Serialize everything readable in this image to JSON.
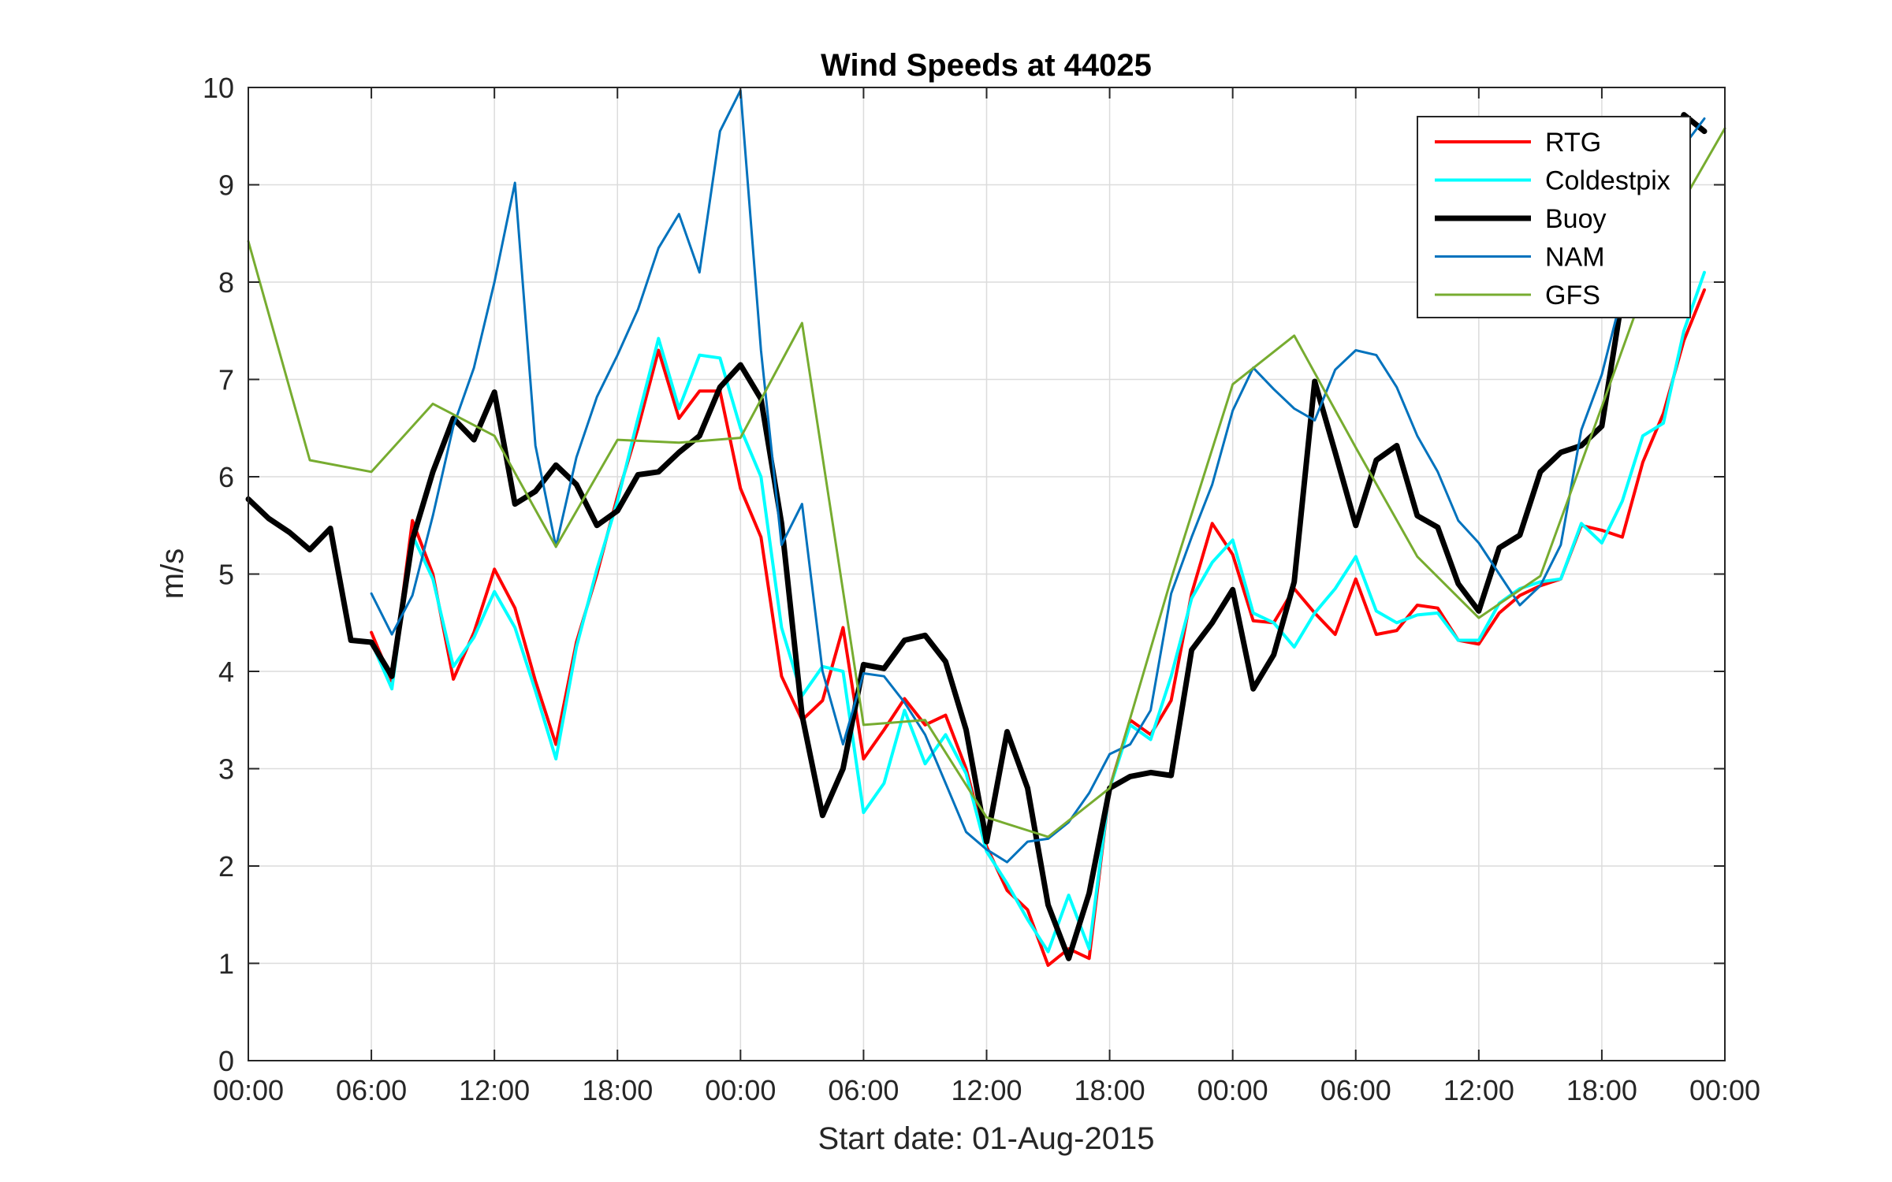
{
  "chart_data": {
    "type": "line",
    "title": "Wind Speeds at 44025",
    "xlabel": "Start date: 01-Aug-2015",
    "ylabel": "m/s",
    "xlim": [
      0,
      72
    ],
    "ylim": [
      0,
      10
    ],
    "x_ticks": [
      0,
      6,
      12,
      18,
      24,
      30,
      36,
      42,
      48,
      54,
      60,
      66,
      72
    ],
    "x_tick_labels": [
      "00:00",
      "06:00",
      "12:00",
      "18:00",
      "00:00",
      "06:00",
      "12:00",
      "18:00",
      "00:00",
      "06:00",
      "12:00",
      "18:00",
      "00:00"
    ],
    "y_ticks": [
      0,
      1,
      2,
      3,
      4,
      5,
      6,
      7,
      8,
      9,
      10
    ],
    "y_tick_labels": [
      "0",
      "1",
      "2",
      "3",
      "4",
      "5",
      "6",
      "7",
      "8",
      "9",
      "10"
    ],
    "grid": true,
    "legend_position": "top-right",
    "series": [
      {
        "name": "RTG",
        "color": "#ff0000",
        "width": 4,
        "x": [
          6,
          7,
          8,
          9,
          10,
          11,
          12,
          13,
          14,
          15,
          16,
          17,
          18,
          19,
          20,
          21,
          22,
          23,
          24,
          25,
          26,
          27,
          28,
          29,
          30,
          31,
          32,
          33,
          34,
          35,
          36,
          37,
          38,
          39,
          40,
          41,
          42,
          43,
          44,
          45,
          46,
          47,
          48,
          49,
          50,
          51,
          52,
          53,
          54,
          55,
          56,
          57,
          58,
          59,
          60,
          61,
          62,
          63,
          64,
          65,
          66,
          67,
          68,
          69,
          70,
          71
        ],
        "values": [
          4.4,
          3.9,
          5.55,
          5.0,
          3.92,
          4.4,
          5.05,
          4.65,
          3.9,
          3.25,
          4.3,
          5.0,
          5.8,
          6.5,
          7.3,
          6.6,
          6.88,
          6.88,
          5.88,
          5.38,
          3.95,
          3.5,
          3.7,
          4.45,
          3.1,
          3.4,
          3.72,
          3.45,
          3.55,
          3.0,
          2.2,
          1.75,
          1.55,
          0.98,
          1.15,
          1.05,
          2.8,
          3.5,
          3.35,
          3.7,
          4.8,
          5.52,
          5.2,
          4.52,
          4.5,
          4.85,
          4.6,
          4.38,
          4.95,
          4.38,
          4.42,
          4.68,
          4.65,
          4.32,
          4.28,
          4.6,
          4.78,
          4.88,
          4.95,
          5.5,
          5.45,
          5.38,
          6.15,
          6.65,
          7.4,
          7.92
        ]
      },
      {
        "name": "Coldestpix",
        "color": "#00ffff",
        "width": 4,
        "x": [
          6,
          7,
          8,
          9,
          10,
          11,
          12,
          13,
          14,
          15,
          16,
          17,
          18,
          19,
          20,
          21,
          22,
          23,
          24,
          25,
          26,
          27,
          28,
          29,
          30,
          31,
          32,
          33,
          34,
          35,
          36,
          37,
          38,
          39,
          40,
          41,
          42,
          43,
          44,
          45,
          46,
          47,
          48,
          49,
          50,
          51,
          52,
          53,
          54,
          55,
          56,
          57,
          58,
          59,
          60,
          61,
          62,
          63,
          64,
          65,
          66,
          67,
          68,
          69,
          70,
          71
        ],
        "values": [
          4.3,
          3.82,
          5.4,
          4.95,
          4.05,
          4.35,
          4.82,
          4.45,
          3.8,
          3.1,
          4.25,
          5.05,
          5.75,
          6.6,
          7.42,
          6.7,
          7.25,
          7.22,
          6.5,
          6.0,
          4.45,
          3.75,
          4.05,
          4.0,
          2.55,
          2.85,
          3.6,
          3.05,
          3.35,
          2.95,
          2.15,
          1.82,
          1.45,
          1.12,
          1.7,
          1.15,
          2.8,
          3.45,
          3.3,
          3.95,
          4.75,
          5.12,
          5.35,
          4.6,
          4.5,
          4.25,
          4.6,
          4.85,
          5.18,
          4.62,
          4.5,
          4.58,
          4.6,
          4.32,
          4.32,
          4.7,
          4.85,
          4.92,
          4.95,
          5.52,
          5.32,
          5.75,
          6.42,
          6.55,
          7.5,
          8.1
        ]
      },
      {
        "name": "Buoy",
        "color": "#000000",
        "width": 7,
        "x": [
          0,
          1,
          2,
          3,
          4,
          5,
          6,
          7,
          8,
          9,
          10,
          11,
          12,
          13,
          14,
          15,
          16,
          17,
          18,
          19,
          20,
          21,
          22,
          23,
          24,
          25,
          26,
          27,
          28,
          29,
          30,
          31,
          32,
          33,
          34,
          35,
          36,
          37,
          38,
          39,
          40,
          41,
          42,
          43,
          44,
          45,
          46,
          47,
          48,
          49,
          50,
          51,
          52,
          53,
          54,
          55,
          56,
          57,
          58,
          59,
          60,
          61,
          62,
          63,
          64,
          65,
          66,
          67,
          68,
          69,
          70,
          71
        ],
        "values": [
          5.77,
          5.57,
          5.43,
          5.25,
          5.47,
          4.32,
          4.3,
          3.95,
          5.35,
          6.05,
          6.6,
          6.38,
          6.87,
          5.72,
          5.85,
          6.12,
          5.92,
          5.5,
          5.65,
          6.02,
          6.05,
          6.25,
          6.42,
          6.92,
          7.15,
          6.8,
          5.52,
          3.55,
          2.52,
          3.0,
          4.07,
          4.03,
          4.32,
          4.37,
          4.1,
          3.4,
          2.25,
          3.38,
          2.8,
          1.6,
          1.05,
          1.72,
          2.8,
          2.92,
          2.96,
          2.93,
          4.22,
          4.5,
          4.84,
          3.82,
          4.17,
          4.92,
          6.98,
          6.25,
          5.5,
          6.17,
          6.32,
          5.6,
          5.48,
          4.9,
          4.62,
          5.27,
          5.4,
          6.05,
          6.25,
          6.32,
          6.52,
          7.85,
          8.5,
          9.05,
          9.72,
          9.55
        ]
      },
      {
        "name": "NAM",
        "color": "#0072bd",
        "width": 3,
        "x": [
          6,
          7,
          8,
          9,
          10,
          11,
          12,
          13,
          14,
          15,
          16,
          17,
          18,
          19,
          20,
          21,
          22,
          23,
          24,
          25,
          26,
          27,
          28,
          29,
          30,
          31,
          32,
          33,
          34,
          35,
          36,
          37,
          38,
          39,
          40,
          41,
          42,
          43,
          44,
          45,
          46,
          47,
          48,
          49,
          50,
          51,
          52,
          53,
          54,
          55,
          56,
          57,
          58,
          59,
          60,
          61,
          62,
          63,
          64,
          65,
          66,
          67,
          68,
          69,
          70,
          71
        ],
        "values": [
          4.8,
          4.38,
          4.78,
          5.6,
          6.52,
          7.12,
          8.0,
          9.02,
          6.32,
          5.28,
          6.2,
          6.82,
          7.25,
          7.72,
          8.35,
          8.7,
          8.1,
          9.55,
          9.97,
          7.3,
          5.3,
          5.72,
          4.0,
          3.25,
          3.98,
          3.95,
          3.68,
          3.35,
          2.85,
          2.35,
          2.17,
          2.04,
          2.25,
          2.28,
          2.45,
          2.75,
          3.15,
          3.25,
          3.6,
          4.8,
          5.38,
          5.92,
          6.68,
          7.12,
          6.9,
          6.7,
          6.58,
          7.1,
          7.3,
          7.25,
          6.92,
          6.42,
          6.05,
          5.55,
          5.32,
          5.0,
          4.68,
          4.88,
          5.3,
          6.48,
          7.05,
          7.88,
          8.5,
          8.9,
          9.4,
          9.68
        ]
      },
      {
        "name": "GFS",
        "color": "#77ac30",
        "width": 3,
        "x": [
          0,
          3,
          6,
          9,
          12,
          15,
          18,
          21,
          24,
          27,
          30,
          33,
          36,
          39,
          42,
          45,
          48,
          51,
          54,
          57,
          60,
          63,
          66,
          69,
          72
        ],
        "values": [
          8.42,
          6.17,
          6.05,
          6.75,
          6.42,
          5.28,
          6.38,
          6.35,
          6.4,
          7.58,
          3.45,
          3.5,
          2.5,
          2.3,
          2.8,
          4.95,
          6.95,
          7.45,
          6.3,
          5.18,
          4.55,
          4.98,
          6.72,
          8.48,
          9.58
        ]
      }
    ]
  }
}
